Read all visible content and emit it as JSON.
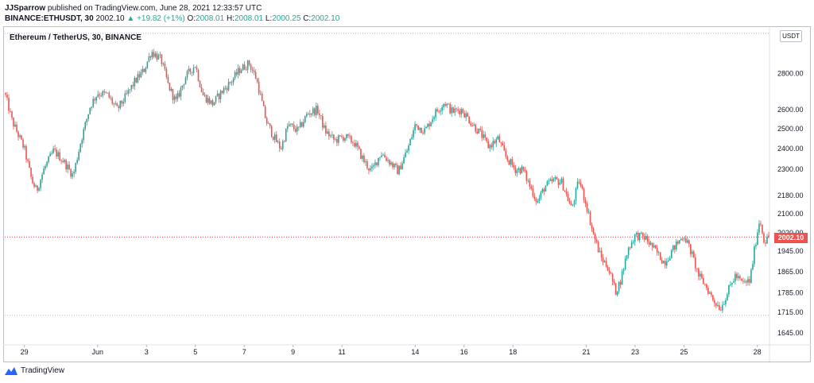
{
  "header": {
    "author": "JJSparrow",
    "published_text": "published on TradingView.com, June 28, 2021 12:33:57 UTC",
    "symbol": "BINANCE:ETHUSDT, 30",
    "last": "2002.10",
    "change": "▲ +19.82 (+1%)",
    "ohlc": {
      "o_label": "O:",
      "o": "2008.01",
      "h_label": "H:",
      "h": "2008.01",
      "l_label": "L:",
      "l": "2000.25",
      "c_label": "C:",
      "c": "2002.10"
    }
  },
  "chart_title": "Ethereum / TetherUS, 30, BINANCE",
  "unit_badge": "USDT",
  "price_badge": "2002.10",
  "footer": {
    "brand": "TradingView"
  },
  "colors": {
    "up": "#26a69a",
    "down": "#ef5350",
    "dotted_line": "#f23645",
    "price_badge": "#ef5350"
  },
  "chart_data": {
    "type": "candlestick",
    "title": "Ethereum / TetherUS, 30, BINANCE",
    "y_scale": "log",
    "ylim": [
      1610,
      3080
    ],
    "y_ticks": [
      {
        "v": 2800,
        "label": "2800.00"
      },
      {
        "v": 2600,
        "label": "2600.00"
      },
      {
        "v": 2500,
        "label": "2500.00"
      },
      {
        "v": 2400,
        "label": "2400.00"
      },
      {
        "v": 2300,
        "label": "2300.00"
      },
      {
        "v": 2180,
        "label": "2180.00"
      },
      {
        "v": 2100,
        "label": "2100.00"
      },
      {
        "v": 2020,
        "label": "2020.00"
      },
      {
        "v": 1945,
        "label": "1945.00"
      },
      {
        "v": 1865,
        "label": "1865.00"
      },
      {
        "v": 1785,
        "label": "1785.00"
      },
      {
        "v": 1715,
        "label": "1715.00"
      },
      {
        "v": 1645,
        "label": "1645.00"
      }
    ],
    "x_ticks": [
      {
        "day": 29,
        "label": "29"
      },
      {
        "day": 32,
        "label": "Jun"
      },
      {
        "day": 34,
        "label": "3"
      },
      {
        "day": 36,
        "label": "5"
      },
      {
        "day": 38,
        "label": "7"
      },
      {
        "day": 40,
        "label": "9"
      },
      {
        "day": 42,
        "label": "11"
      },
      {
        "day": 45,
        "label": "14"
      },
      {
        "day": 47,
        "label": "16"
      },
      {
        "day": 49,
        "label": "18"
      },
      {
        "day": 52,
        "label": "21"
      },
      {
        "day": 54,
        "label": "23"
      },
      {
        "day": 56,
        "label": "25"
      },
      {
        "day": 59,
        "label": "28"
      }
    ],
    "x_range_days": [
      28.2,
      59.5
    ],
    "reference_lines": [
      3040,
      2002.1,
      1705
    ],
    "key_points": [
      [
        28.2,
        2690
      ],
      [
        28.5,
        2540
      ],
      [
        29.0,
        2400
      ],
      [
        29.3,
        2250
      ],
      [
        29.5,
        2200
      ],
      [
        29.8,
        2300
      ],
      [
        30.2,
        2390
      ],
      [
        30.6,
        2340
      ],
      [
        31.0,
        2270
      ],
      [
        31.3,
        2430
      ],
      [
        31.7,
        2620
      ],
      [
        32.0,
        2690
      ],
      [
        32.4,
        2680
      ],
      [
        32.8,
        2600
      ],
      [
        33.2,
        2680
      ],
      [
        33.5,
        2750
      ],
      [
        33.9,
        2820
      ],
      [
        34.2,
        2930
      ],
      [
        34.6,
        2880
      ],
      [
        34.9,
        2730
      ],
      [
        35.2,
        2640
      ],
      [
        35.6,
        2780
      ],
      [
        36.0,
        2850
      ],
      [
        36.3,
        2680
      ],
      [
        36.7,
        2630
      ],
      [
        37.1,
        2700
      ],
      [
        37.5,
        2760
      ],
      [
        37.8,
        2820
      ],
      [
        38.2,
        2860
      ],
      [
        38.5,
        2770
      ],
      [
        38.9,
        2540
      ],
      [
        39.2,
        2460
      ],
      [
        39.5,
        2400
      ],
      [
        39.8,
        2520
      ],
      [
        40.2,
        2490
      ],
      [
        40.6,
        2580
      ],
      [
        41.0,
        2600
      ],
      [
        41.3,
        2490
      ],
      [
        41.7,
        2440
      ],
      [
        42.1,
        2460
      ],
      [
        42.5,
        2430
      ],
      [
        42.9,
        2340
      ],
      [
        43.2,
        2290
      ],
      [
        43.6,
        2380
      ],
      [
        44.0,
        2330
      ],
      [
        44.3,
        2290
      ],
      [
        44.7,
        2400
      ],
      [
        45.0,
        2520
      ],
      [
        45.4,
        2490
      ],
      [
        45.8,
        2580
      ],
      [
        46.2,
        2640
      ],
      [
        46.5,
        2590
      ],
      [
        46.9,
        2600
      ],
      [
        47.3,
        2530
      ],
      [
        47.7,
        2470
      ],
      [
        48.0,
        2410
      ],
      [
        48.4,
        2450
      ],
      [
        48.7,
        2360
      ],
      [
        49.1,
        2300
      ],
      [
        49.4,
        2300
      ],
      [
        49.7,
        2220
      ],
      [
        50.0,
        2150
      ],
      [
        50.3,
        2220
      ],
      [
        50.7,
        2250
      ],
      [
        51.0,
        2240
      ],
      [
        51.4,
        2120
      ],
      [
        51.7,
        2250
      ],
      [
        52.0,
        2140
      ],
      [
        52.3,
        2010
      ],
      [
        52.6,
        1920
      ],
      [
        52.9,
        1880
      ],
      [
        53.2,
        1790
      ],
      [
        53.4,
        1830
      ],
      [
        53.7,
        1950
      ],
      [
        54.0,
        2010
      ],
      [
        54.4,
        2000
      ],
      [
        54.8,
        1950
      ],
      [
        55.2,
        1900
      ],
      [
        55.6,
        1960
      ],
      [
        56.0,
        2010
      ],
      [
        56.3,
        1940
      ],
      [
        56.6,
        1850
      ],
      [
        56.9,
        1810
      ],
      [
        57.2,
        1760
      ],
      [
        57.5,
        1730
      ],
      [
        57.8,
        1790
      ],
      [
        58.1,
        1850
      ],
      [
        58.4,
        1820
      ],
      [
        58.7,
        1830
      ],
      [
        58.9,
        1960
      ],
      [
        59.1,
        2080
      ],
      [
        59.3,
        1980
      ],
      [
        59.5,
        2002
      ]
    ],
    "last": {
      "o": 2008.01,
      "h": 2008.01,
      "l": 2000.25,
      "c": 2002.1
    }
  }
}
